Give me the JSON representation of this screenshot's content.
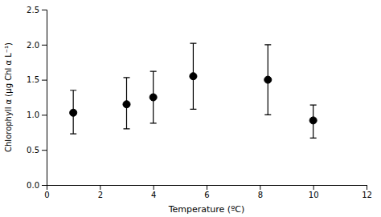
{
  "chart_data": {
    "type": "scatter",
    "x": [
      1,
      3,
      4,
      5.5,
      8.3,
      10
    ],
    "values": [
      1.03,
      1.15,
      1.25,
      1.55,
      1.5,
      0.92
    ],
    "error_lower": [
      0.3,
      0.35,
      0.37,
      0.47,
      0.5,
      0.25
    ],
    "error_upper": [
      0.32,
      0.38,
      0.37,
      0.47,
      0.5,
      0.22
    ],
    "xlim": [
      0,
      12
    ],
    "ylim": [
      0,
      2.5
    ],
    "xticks": [
      0,
      2,
      4,
      6,
      8,
      10,
      12
    ],
    "yticks": [
      {
        "value": 0,
        "label": "0.0"
      },
      0.5,
      {
        "value": 1,
        "label": "1.0"
      },
      1.5,
      {
        "value": 2,
        "label": "2.0"
      },
      2.5
    ],
    "xlabel": "Temperature (ºC)",
    "ylabel": "Chlorophyll α (μg Chl α L⁻¹)",
    "marker": "circle",
    "color": "black",
    "grid": false
  }
}
